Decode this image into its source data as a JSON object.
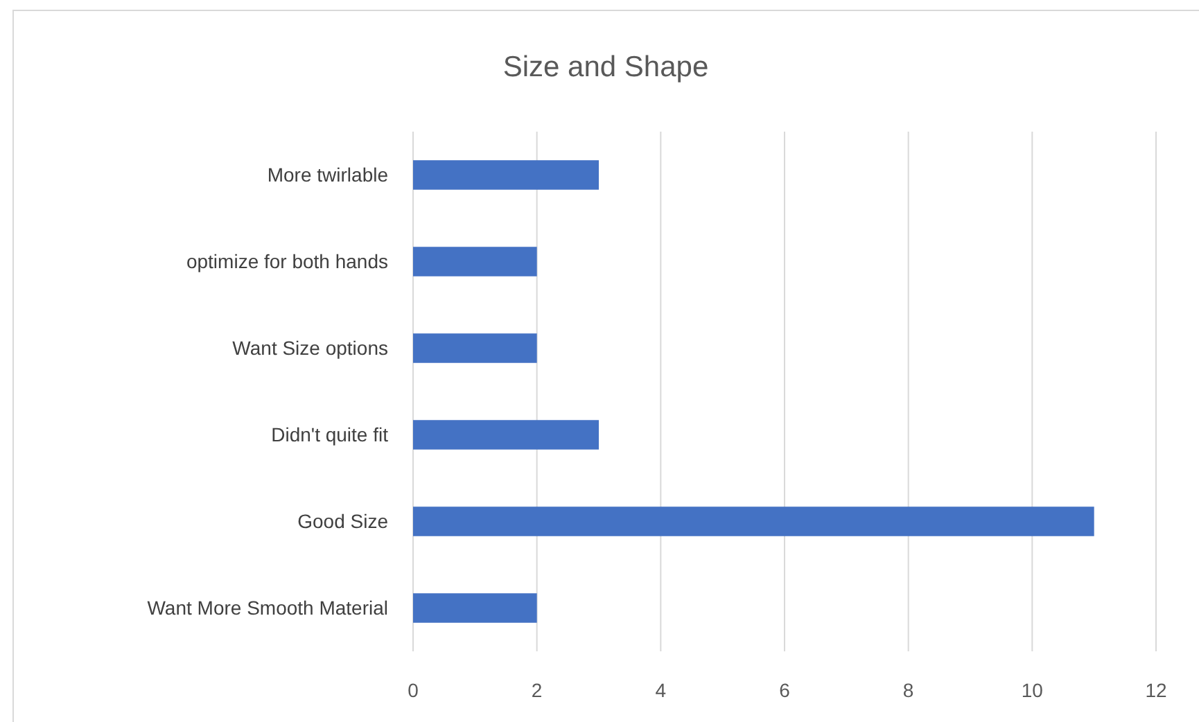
{
  "chart_data": {
    "type": "bar",
    "title": "Size and Shape",
    "orientation": "horizontal",
    "categories": [
      "More twirlable",
      "optimize for both hands",
      "Want Size options",
      "Didn't quite fit",
      "Good Size",
      "Want More Smooth Material"
    ],
    "values": [
      3,
      2,
      2,
      3,
      11,
      2
    ],
    "color": "#4472c4",
    "xlim": [
      0,
      12
    ],
    "xticks": [
      0,
      2,
      4,
      6,
      8,
      10,
      12
    ],
    "grid": "x"
  }
}
